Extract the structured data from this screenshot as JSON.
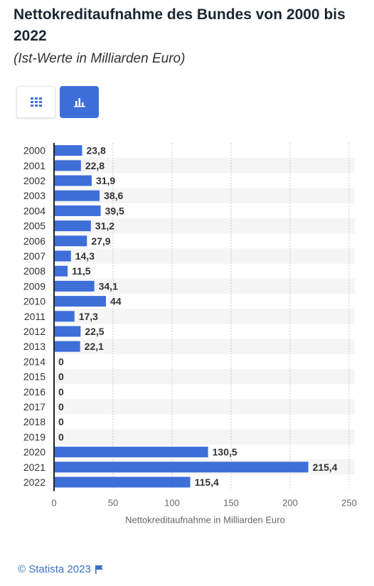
{
  "header": {
    "title": "Nettokreditaufnahme des Bundes von 2000 bis 2022",
    "subtitle": "(Ist-Werte in Milliarden Euro)"
  },
  "toggles": {
    "table_icon": "grid-icon",
    "chart_icon": "bar-chart-icon",
    "active": "chart",
    "accent_color": "#3e6fd8"
  },
  "chart_data": {
    "type": "bar",
    "orientation": "horizontal",
    "categories": [
      "2000",
      "2001",
      "2002",
      "2003",
      "2004",
      "2005",
      "2006",
      "2007",
      "2008",
      "2009",
      "2010",
      "2011",
      "2012",
      "2013",
      "2014",
      "2015",
      "2016",
      "2017",
      "2018",
      "2019",
      "2020",
      "2021",
      "2022"
    ],
    "values": [
      23.8,
      22.8,
      31.9,
      38.6,
      39.5,
      31.2,
      27.9,
      14.3,
      11.5,
      34.1,
      44,
      17.3,
      22.5,
      22.1,
      0,
      0,
      0,
      0,
      0,
      0,
      130.5,
      215.4,
      115.4
    ],
    "value_labels": [
      "23,8",
      "22,8",
      "31,9",
      "38,6",
      "39,5",
      "31,2",
      "27,9",
      "14,3",
      "11,5",
      "34,1",
      "44",
      "17,3",
      "22,5",
      "22,1",
      "0",
      "0",
      "0",
      "0",
      "0",
      "0",
      "130,5",
      "215,4",
      "115,4"
    ],
    "xlabel": "Nettokreditaufnahme in Milliarden Euro",
    "ylabel": "",
    "xlim": [
      0,
      250
    ],
    "xticks": [
      "0",
      "50",
      "100",
      "150",
      "200",
      "250"
    ],
    "grid": true,
    "bar_color": "#3e6fd8"
  },
  "footer": {
    "source": "© Statista 2023",
    "flag_icon": "flag-icon"
  }
}
